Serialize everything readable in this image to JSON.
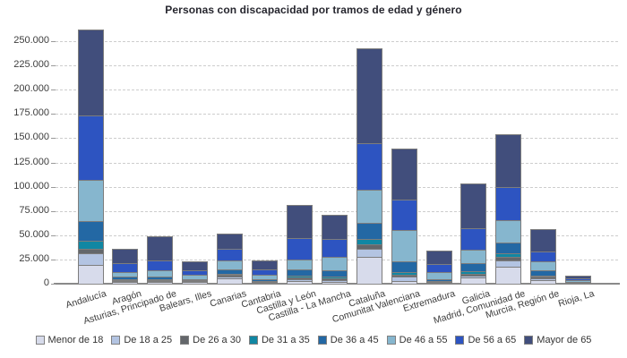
{
  "title": "Personas con discapacidad por tramos de edad y género",
  "colors": {
    "background": "#ffffff",
    "grid": "#cdcdcd",
    "axis": "#8a8a8a",
    "segment_border": "#7d7d7d",
    "text": "#3c3c3c",
    "title_text": "#26262e"
  },
  "chart_data": {
    "type": "bar",
    "stacked": true,
    "title": "Personas con discapacidad por tramos de edad y género",
    "xlabel": "",
    "ylabel": "",
    "ylim": [
      0,
      262000
    ],
    "grid": "horizontal-dashed",
    "legend_position": "bottom",
    "y_ticks": [
      0,
      25000,
      50000,
      75000,
      100000,
      125000,
      150000,
      175000,
      200000,
      225000,
      250000
    ],
    "y_tick_labels": [
      "0",
      "25.000",
      "50.000",
      "75.000",
      "100.000",
      "125.000",
      "150.000",
      "175.000",
      "200.000",
      "225.000",
      "250.000"
    ],
    "categories": [
      "Andalucía",
      "Aragón",
      "Asturias, Principado de",
      "Balears, Illes",
      "Canarias",
      "Cantabria",
      "Castilla y León",
      "Castilla - La Mancha",
      "Cataluña",
      "Comunitat Valenciana",
      "Extremadura",
      "Galicia",
      "Madrid, Comunidad de",
      "Murcia, Región de",
      "Rioja, La"
    ],
    "series": [
      {
        "name": "Menor de 18",
        "color": "#d7dbeb",
        "values": [
          19400,
          2200,
          2000,
          1600,
          5600,
          1100,
          2750,
          2100,
          27400,
          3050,
          800,
          6200,
          17250,
          4000,
          600
        ]
      },
      {
        "name": "De 18 a 25",
        "color": "#b3c4e2",
        "values": [
          11700,
          900,
          900,
          800,
          1800,
          700,
          2150,
          1850,
          8600,
          4050,
          700,
          2100,
          7000,
          1550,
          300
        ]
      },
      {
        "name": "De 26 a 30",
        "color": "#64676b",
        "values": [
          5100,
          900,
          700,
          500,
          1500,
          500,
          1550,
          1850,
          4900,
          2100,
          500,
          2100,
          3750,
          1550,
          300
        ]
      },
      {
        "name": "De 31 a 35",
        "color": "#1187a3",
        "values": [
          7800,
          900,
          700,
          500,
          1500,
          500,
          1550,
          1300,
          4900,
          2500,
          500,
          2200,
          3650,
          1500,
          300
        ]
      },
      {
        "name": "De 36 a 45",
        "color": "#2368a4",
        "values": [
          20300,
          2200,
          2800,
          1500,
          4700,
          1800,
          7050,
          7000,
          16650,
          11100,
          1800,
          8600,
          11050,
          5200,
          800
        ]
      },
      {
        "name": "De 46 a 55",
        "color": "#86b6ce",
        "values": [
          43000,
          4900,
          7000,
          4000,
          8900,
          4300,
          9850,
          13900,
          34450,
          32300,
          7400,
          13600,
          22800,
          9300,
          1200
        ]
      },
      {
        "name": "De 56 a 65",
        "color": "#2d54c1",
        "values": [
          65900,
          8900,
          9900,
          5200,
          12300,
          6100,
          22100,
          17800,
          48000,
          31900,
          8600,
          22700,
          33800,
          9800,
          1800
        ]
      },
      {
        "name": "Mayor de 65",
        "color": "#414e7c",
        "values": [
          88500,
          15400,
          24600,
          9200,
          15400,
          8700,
          34200,
          25200,
          97500,
          52300,
          13800,
          45500,
          54700,
          23400,
          3300
        ]
      }
    ]
  }
}
